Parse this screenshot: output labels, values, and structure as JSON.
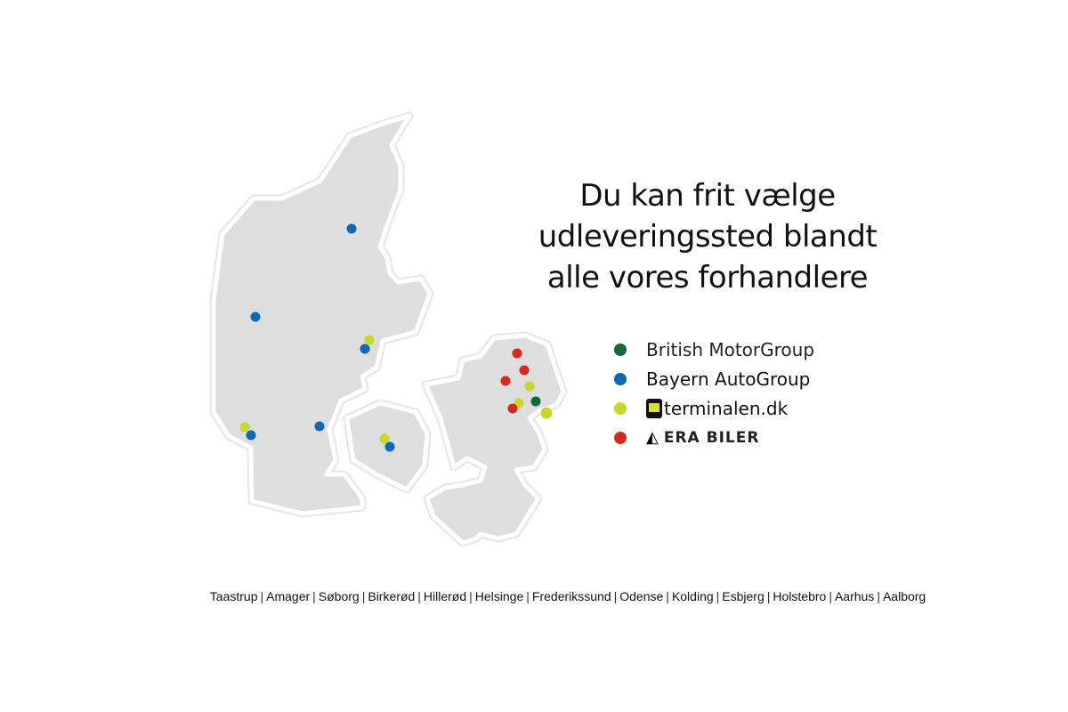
{
  "headline": [
    "Du kan frit vælge",
    "udleveringssted blandt",
    "alle vores forhandlere"
  ],
  "legend": [
    {
      "label": "British MotorGroup",
      "color": "#0e6b3a",
      "key": "british"
    },
    {
      "label": "Bayern AutoGroup",
      "color": "#0b68b3",
      "key": "bayern"
    },
    {
      "label": "terminalen.dk",
      "color": "#c8d62e",
      "key": "terminalen"
    },
    {
      "label": "ERA BILER",
      "color": "#d42a1f",
      "key": "era"
    }
  ],
  "map": {
    "regions": [
      "Jylland",
      "Fyn",
      "Sjælland"
    ],
    "land_color": "#dedede",
    "markers": [
      "bayern",
      "bayern",
      "terminalen",
      "bayern",
      "terminalen",
      "bayern",
      "bayern",
      "terminalen",
      "bayern",
      "era",
      "era",
      "era",
      "terminalen",
      "terminalen",
      "era",
      "british",
      "terminalen"
    ]
  },
  "cities": [
    "Taastrup",
    "Amager",
    "Søborg",
    "Birkerød",
    "Hillerød",
    "Helsinge",
    "Frederikssund",
    "Odense",
    "Kolding",
    "Esbjerg",
    "Holstebro",
    "Aarhus",
    "Aalborg"
  ]
}
